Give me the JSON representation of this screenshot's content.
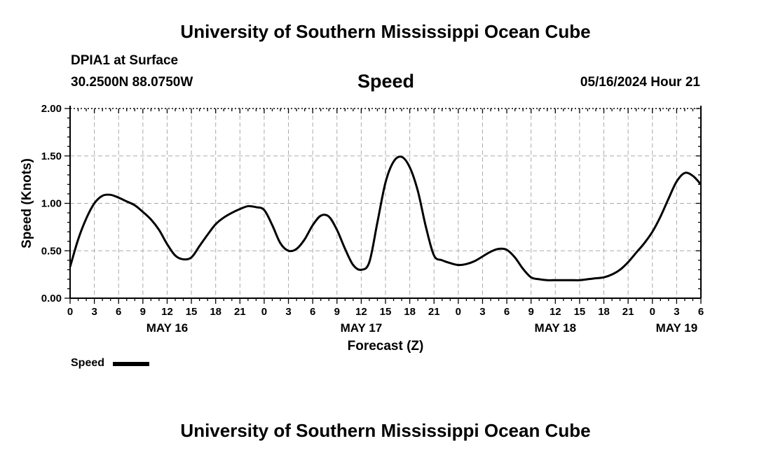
{
  "header": {
    "title": "University of Southern Mississippi Ocean Cube",
    "station": "DPIA1 at Surface",
    "coords": "30.2500N  88.0750W",
    "datetime": "05/16/2024 Hour 21",
    "footer_title": "University of Southern Mississippi Ocean Cube"
  },
  "legend": {
    "label": "Speed"
  },
  "chart_data": {
    "type": "line",
    "title": "Speed",
    "xlabel": "Forecast (Z)",
    "ylabel": "Speed (Knots)",
    "ylim": [
      0,
      2
    ],
    "xlim": [
      0,
      78
    ],
    "x_unit": "hours since May 16 00Z",
    "grid": true,
    "y_ticks": [
      "0.00",
      "0.50",
      "1.00",
      "1.50",
      "2.00"
    ],
    "y_tick_values": [
      0,
      0.5,
      1.0,
      1.5,
      2.0
    ],
    "x_tick_labels": [
      "0",
      "3",
      "6",
      "9",
      "12",
      "15",
      "18",
      "21",
      "0",
      "3",
      "6",
      "9",
      "12",
      "15",
      "18",
      "21",
      "0",
      "3",
      "6",
      "9",
      "12",
      "15",
      "18",
      "21",
      "0",
      "3",
      "6"
    ],
    "date_labels": [
      {
        "label": "MAY 16",
        "at_hour": 12
      },
      {
        "label": "MAY 17",
        "at_hour": 36
      },
      {
        "label": "MAY 18",
        "at_hour": 60
      },
      {
        "label": "MAY 19",
        "at_hour": 75
      }
    ],
    "series": [
      {
        "name": "Speed",
        "color": "#000000",
        "x": [
          0,
          1,
          2,
          3,
          4,
          5,
          6,
          7,
          8,
          9,
          10,
          11,
          12,
          13,
          14,
          15,
          16,
          17,
          18,
          19,
          20,
          21,
          22,
          23,
          24,
          25,
          26,
          27,
          28,
          29,
          30,
          31,
          32,
          33,
          34,
          35,
          36,
          37,
          38,
          39,
          40,
          41,
          42,
          43,
          44,
          45,
          46,
          47,
          48,
          49,
          50,
          51,
          52,
          53,
          54,
          55,
          56,
          57,
          58,
          59,
          60,
          61,
          62,
          63,
          64,
          65,
          66,
          67,
          68,
          69,
          70,
          71,
          72,
          73,
          74,
          75,
          76,
          77,
          78
        ],
        "values": [
          0.33,
          0.62,
          0.84,
          1.0,
          1.08,
          1.09,
          1.06,
          1.02,
          0.98,
          0.91,
          0.83,
          0.72,
          0.57,
          0.45,
          0.41,
          0.43,
          0.55,
          0.67,
          0.78,
          0.85,
          0.9,
          0.94,
          0.97,
          0.96,
          0.93,
          0.77,
          0.58,
          0.5,
          0.52,
          0.62,
          0.77,
          0.87,
          0.86,
          0.72,
          0.52,
          0.35,
          0.3,
          0.38,
          0.8,
          1.22,
          1.44,
          1.49,
          1.38,
          1.13,
          0.75,
          0.45,
          0.4,
          0.37,
          0.35,
          0.36,
          0.39,
          0.44,
          0.49,
          0.52,
          0.51,
          0.43,
          0.31,
          0.22,
          0.2,
          0.19,
          0.19,
          0.19,
          0.19,
          0.19,
          0.2,
          0.21,
          0.22,
          0.25,
          0.3,
          0.38,
          0.48,
          0.58,
          0.7,
          0.86,
          1.05,
          1.23,
          1.32,
          1.29,
          1.2
        ]
      }
    ]
  }
}
